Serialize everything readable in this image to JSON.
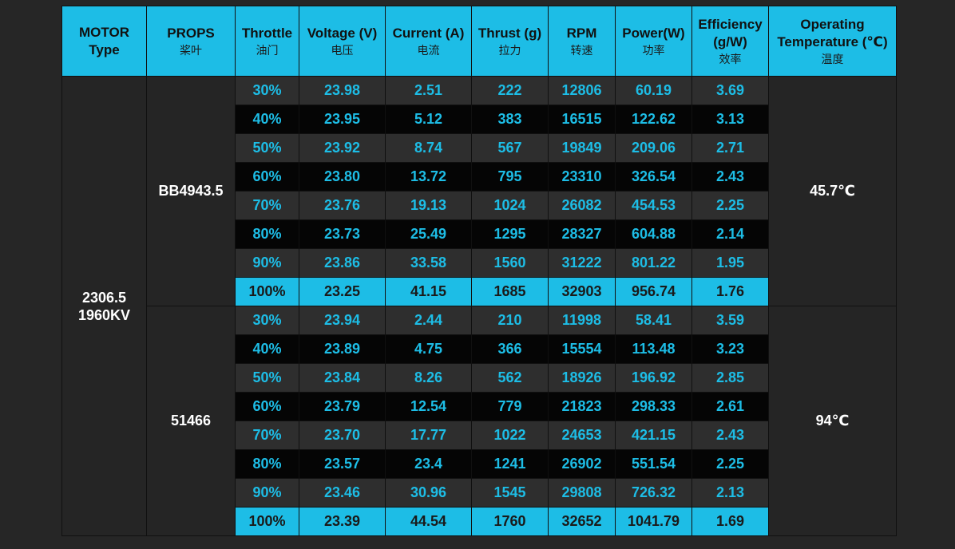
{
  "colors": {
    "header_bg": "#1dbde6",
    "accent": "#1dbde6",
    "page_bg": "#262626",
    "row_dark": "#050505",
    "row_gray": "#2e2e2e"
  },
  "headers": [
    {
      "en": "MOTOR",
      "en2": "Type",
      "cn": ""
    },
    {
      "en": "PROPS",
      "en2": "",
      "cn": "桨叶"
    },
    {
      "en": "Throttle",
      "en2": "",
      "cn": "油门"
    },
    {
      "en": "Voltage (V)",
      "en2": "",
      "cn": "电压"
    },
    {
      "en": "Current (A)",
      "en2": "",
      "cn": "电流"
    },
    {
      "en": "Thrust (g)",
      "en2": "",
      "cn": "拉力"
    },
    {
      "en": "RPM",
      "en2": "",
      "cn": "转速"
    },
    {
      "en": "Power(W)",
      "en2": "",
      "cn": "功率"
    },
    {
      "en": "Efficiency",
      "en2": "(g/W)",
      "cn": "效率"
    },
    {
      "en": "Operating",
      "en2": "Temperature (℃)",
      "cn": "温度"
    }
  ],
  "motor": {
    "line1": "2306.5",
    "line2": "1960KV"
  },
  "groups": [
    {
      "prop": "BB4943.5",
      "temperature": "45.7℃",
      "rows": [
        [
          "30%",
          "23.98",
          "2.51",
          "222",
          "12806",
          "60.19",
          "3.69"
        ],
        [
          "40%",
          "23.95",
          "5.12",
          "383",
          "16515",
          "122.62",
          "3.13"
        ],
        [
          "50%",
          "23.92",
          "8.74",
          "567",
          "19849",
          "209.06",
          "2.71"
        ],
        [
          "60%",
          "23.80",
          "13.72",
          "795",
          "23310",
          "326.54",
          "2.43"
        ],
        [
          "70%",
          "23.76",
          "19.13",
          "1024",
          "26082",
          "454.53",
          "2.25"
        ],
        [
          "80%",
          "23.73",
          "25.49",
          "1295",
          "28327",
          "604.88",
          "2.14"
        ],
        [
          "90%",
          "23.86",
          "33.58",
          "1560",
          "31222",
          "801.22",
          "1.95"
        ],
        [
          "100%",
          "23.25",
          "41.15",
          "1685",
          "32903",
          "956.74",
          "1.76"
        ]
      ]
    },
    {
      "prop": "51466",
      "temperature": "94℃",
      "rows": [
        [
          "30%",
          "23.94",
          "2.44",
          "210",
          "11998",
          "58.41",
          "3.59"
        ],
        [
          "40%",
          "23.89",
          "4.75",
          "366",
          "15554",
          "113.48",
          "3.23"
        ],
        [
          "50%",
          "23.84",
          "8.26",
          "562",
          "18926",
          "196.92",
          "2.85"
        ],
        [
          "60%",
          "23.79",
          "12.54",
          "779",
          "21823",
          "298.33",
          "2.61"
        ],
        [
          "70%",
          "23.70",
          "17.77",
          "1022",
          "24653",
          "421.15",
          "2.43"
        ],
        [
          "80%",
          "23.57",
          "23.4",
          "1241",
          "26902",
          "551.54",
          "2.25"
        ],
        [
          "90%",
          "23.46",
          "30.96",
          "1545",
          "29808",
          "726.32",
          "2.13"
        ],
        [
          "100%",
          "23.39",
          "44.54",
          "1760",
          "32652",
          "1041.79",
          "1.69"
        ]
      ]
    }
  ]
}
